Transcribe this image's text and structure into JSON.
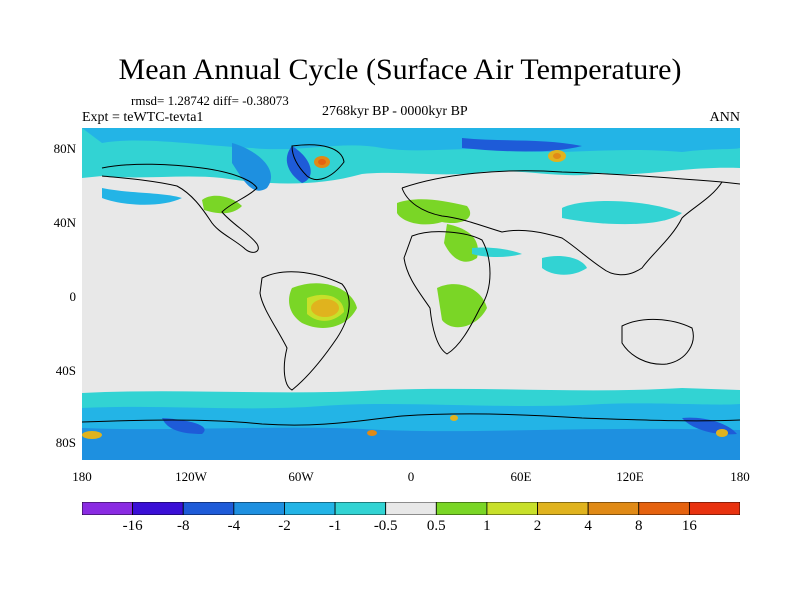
{
  "title": "Mean Annual Cycle (Surface Air Temperature)",
  "stats": "rmsd= 1.28742 diff= -0.38073",
  "experiment": "Expt = teWTC-tevta1",
  "period": "2768kyr BP - 0000kyr BP",
  "season": "ANN",
  "y_ticks": [
    "80N",
    "40N",
    "0",
    "40S",
    "80S"
  ],
  "x_ticks": [
    "180",
    "120W",
    "60W",
    "0",
    "60E",
    "120E",
    "180"
  ],
  "colorbar": {
    "colors": [
      "#8a2be2",
      "#3a0fd6",
      "#1e5bd8",
      "#1e90e0",
      "#23b4e6",
      "#32d3d3",
      "#e8e8e8",
      "#7ad626",
      "#c8e02a",
      "#e0b31e",
      "#e08a16",
      "#e5620f",
      "#e8320f"
    ],
    "labels": [
      "-16",
      "-8",
      "-4",
      "-2",
      "-1",
      "-0.5",
      "0.5",
      "1",
      "2",
      "4",
      "8",
      "16"
    ]
  }
}
